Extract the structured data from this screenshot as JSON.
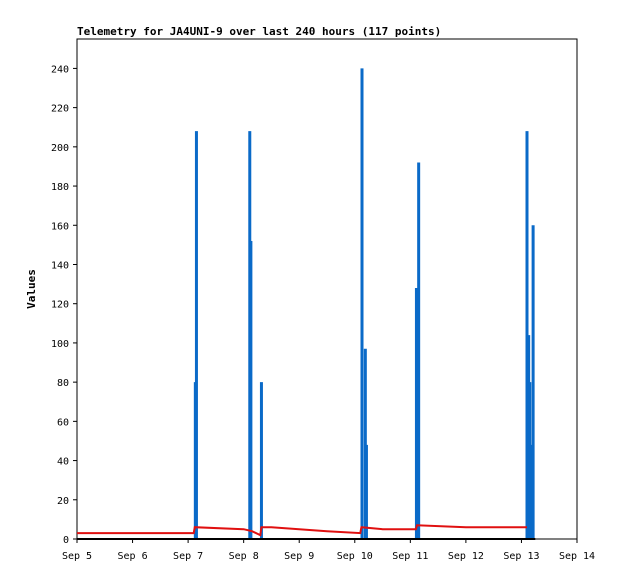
{
  "chart_data": {
    "type": "line",
    "title": "Telemetry for JA4UNI-9 over last 240 hours (117 points)",
    "xlabel": "",
    "ylabel": "Values",
    "x_ticks": [
      "Sep 5",
      "Sep 6",
      "Sep 7",
      "Sep 8",
      "Sep 9",
      "Sep 10",
      "Sep 11",
      "Sep 12",
      "Sep 13",
      "Sep 14"
    ],
    "y_ticks": [
      0,
      20,
      40,
      60,
      80,
      100,
      120,
      140,
      160,
      180,
      200,
      220,
      240
    ],
    "xlim": [
      0,
      9
    ],
    "ylim": [
      0,
      255
    ],
    "grid": false,
    "legend": "none",
    "series": [
      {
        "name": "",
        "color": "#0a6ac8",
        "style": "spikes",
        "points": [
          [
            2.13,
            80
          ],
          [
            2.15,
            208
          ],
          [
            3.11,
            208
          ],
          [
            3.13,
            152
          ],
          [
            3.32,
            80
          ],
          [
            5.13,
            240
          ],
          [
            5.19,
            97
          ],
          [
            5.21,
            48
          ],
          [
            6.11,
            128
          ],
          [
            6.15,
            192
          ],
          [
            8.1,
            208
          ],
          [
            8.13,
            104
          ],
          [
            8.15,
            80
          ],
          [
            8.18,
            48
          ],
          [
            8.21,
            160
          ]
        ]
      },
      {
        "name": "",
        "color": "#e01010",
        "style": "line",
        "points": [
          [
            0.0,
            3
          ],
          [
            2.1,
            3
          ],
          [
            2.12,
            6
          ],
          [
            3.0,
            5
          ],
          [
            3.15,
            4
          ],
          [
            3.3,
            2
          ],
          [
            3.32,
            6
          ],
          [
            3.5,
            6
          ],
          [
            4.5,
            4
          ],
          [
            5.1,
            3
          ],
          [
            5.12,
            6
          ],
          [
            5.5,
            5
          ],
          [
            6.1,
            5
          ],
          [
            6.12,
            7
          ],
          [
            7.0,
            6
          ],
          [
            8.1,
            6
          ]
        ]
      },
      {
        "name": "",
        "color": "#000000",
        "style": "line",
        "points": [
          [
            0.0,
            0
          ],
          [
            8.25,
            0
          ]
        ]
      }
    ]
  }
}
